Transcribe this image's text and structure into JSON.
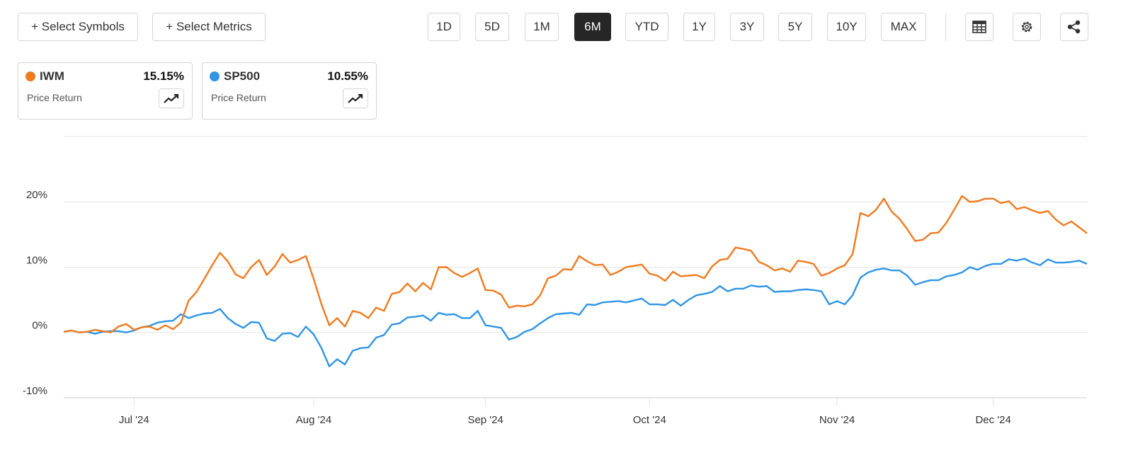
{
  "toolbar": {
    "buttons": [
      "+ Select Symbols",
      "+ Select Metrics"
    ],
    "ranges": [
      "1D",
      "5D",
      "1M",
      "6M",
      "YTD",
      "1Y",
      "3Y",
      "5Y",
      "10Y",
      "MAX"
    ],
    "active_range": "6M"
  },
  "cards": [
    {
      "value": "15.15%",
      "metric": "Price Return"
    },
    {
      "value": "10.55%",
      "metric": "Price Return"
    }
  ],
  "chart_data": {
    "type": "line",
    "categories": [
      null,
      null,
      null,
      null,
      null,
      null,
      null,
      null,
      null,
      "Jul '24",
      null,
      null,
      null,
      null,
      null,
      null,
      null,
      null,
      null,
      null,
      null,
      null,
      null,
      null,
      null,
      null,
      null,
      null,
      null,
      null,
      null,
      null,
      "Aug '24",
      null,
      null,
      null,
      null,
      null,
      null,
      null,
      null,
      null,
      null,
      null,
      null,
      null,
      null,
      null,
      null,
      null,
      null,
      null,
      null,
      null,
      "Sep '24",
      null,
      null,
      null,
      null,
      null,
      null,
      null,
      null,
      null,
      null,
      null,
      null,
      null,
      null,
      null,
      null,
      null,
      null,
      null,
      null,
      "Oct '24",
      null,
      null,
      null,
      null,
      null,
      null,
      null,
      null,
      null,
      null,
      null,
      null,
      null,
      null,
      null,
      null,
      null,
      null,
      null,
      null,
      null,
      null,
      null,
      "Nov '24",
      null,
      null,
      null,
      null,
      null,
      null,
      null,
      null,
      null,
      null,
      null,
      null,
      null,
      null,
      null,
      null,
      null,
      null,
      null,
      "Dec '24",
      null,
      null,
      null,
      null,
      null,
      null,
      null,
      null,
      null,
      null,
      null,
      null
    ],
    "series": [
      {
        "name": "IWM",
        "color": "#f07a1e",
        "values": [
          0.1,
          0.3,
          0,
          0.1,
          0.4,
          0.2,
          0,
          0.9,
          1.3,
          0.4,
          0.8,
          0.9,
          0.4,
          1.1,
          0.5,
          1.5,
          4.9,
          6.2,
          8.2,
          10.3,
          12.2,
          10.9,
          8.9,
          8.3,
          10.0,
          11.1,
          8.8,
          10.1,
          12.0,
          10.7,
          11.1,
          11.7,
          8.2,
          4.3,
          1.1,
          2.2,
          0.9,
          3.3,
          3.0,
          2.2,
          3.8,
          3.3,
          5.9,
          6.2,
          7.5,
          6.3,
          7.6,
          6.6,
          10.0,
          10.0,
          9.1,
          8.5,
          9.1,
          9.8,
          6.5,
          6.4,
          5.8,
          3.8,
          4.1,
          4.0,
          4.3,
          5.7,
          8.3,
          8.7,
          9.7,
          9.6,
          11.7,
          10.9,
          10.3,
          10.4,
          8.8,
          9.3,
          10.0,
          10.2,
          10.4,
          9.0,
          8.7,
          7.9,
          9.3,
          8.6,
          8.7,
          8.8,
          8.3,
          10.1,
          11.1,
          11.3,
          13.0,
          12.8,
          12.5,
          10.8,
          10.3,
          9.5,
          9.8,
          9.3,
          11.0,
          10.8,
          10.5,
          8.7,
          9.1,
          9.8,
          10.3,
          12.0,
          18.3,
          17.8,
          18.8,
          20.5,
          18.5,
          17.4,
          15.8,
          14.0,
          14.2,
          15.2,
          15.3,
          16.8,
          18.8,
          20.9,
          20.0,
          20.1,
          20.5,
          20.5,
          19.8,
          20.1,
          18.9,
          19.2,
          18.7,
          18.3,
          18.6,
          17.3,
          16.4,
          17.0,
          16.1,
          15.2
        ]
      },
      {
        "name": "SP500",
        "color": "#2f95e6",
        "values": [
          0.1,
          0.3,
          0,
          0.1,
          -0.2,
          0.1,
          0.2,
          0.2,
          0,
          0.3,
          0.8,
          1.0,
          1.5,
          1.7,
          1.8,
          2.8,
          2.2,
          2.6,
          2.9,
          3.0,
          3.6,
          2.2,
          1.3,
          0.7,
          1.6,
          1.5,
          -0.9,
          -1.3,
          -0.2,
          -0.1,
          -0.7,
          0.9,
          -0.3,
          -2.4,
          -5.2,
          -4.1,
          -4.9,
          -2.8,
          -2.4,
          -2.3,
          -0.8,
          -0.4,
          1.2,
          1.4,
          2.3,
          2.4,
          2.6,
          1.8,
          3.0,
          2.7,
          2.8,
          2.2,
          2.2,
          3.3,
          1.1,
          0.9,
          0.7,
          -1.1,
          -0.7,
          0.1,
          0.5,
          1.4,
          2.2,
          2.8,
          2.9,
          3.0,
          2.7,
          4.3,
          4.2,
          4.6,
          4.7,
          4.8,
          4.6,
          4.9,
          5.2,
          4.3,
          4.3,
          4.2,
          5.0,
          4.1,
          5.0,
          5.7,
          5.9,
          6.2,
          7.1,
          6.3,
          6.7,
          6.7,
          7.2,
          7.0,
          7.1,
          6.2,
          6.3,
          6.3,
          6.5,
          6.6,
          6.5,
          6.3,
          4.3,
          4.8,
          4.3,
          5.7,
          8.4,
          9.2,
          9.6,
          9.8,
          9.5,
          9.5,
          8.7,
          7.3,
          7.7,
          8.0,
          8.0,
          8.6,
          8.8,
          9.2,
          10.0,
          9.6,
          10.2,
          10.5,
          10.5,
          11.2,
          11.0,
          11.3,
          10.7,
          10.3,
          11.2,
          10.7,
          10.7,
          10.8,
          11.0,
          10.5
        ]
      }
    ],
    "ylim": [
      -10,
      30
    ],
    "yticks": [
      {
        "value": -10,
        "label": "-10%"
      },
      {
        "value": 0,
        "label": "0%"
      },
      {
        "value": 10,
        "label": "10%"
      },
      {
        "value": 20,
        "label": "20%"
      }
    ],
    "grid": true
  }
}
